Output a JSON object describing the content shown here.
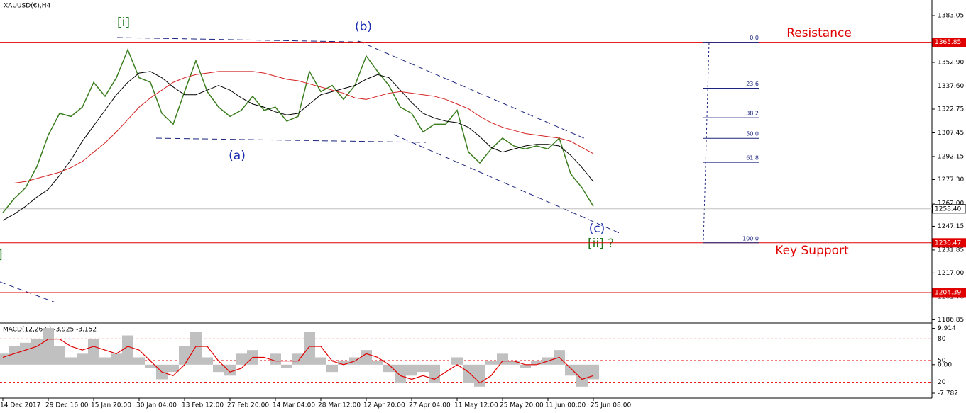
{
  "chart_data": [
    {
      "type": "line",
      "title": "XAUUSD(€),H4",
      "categories": [
        "14 Dec 2017",
        null,
        null,
        null,
        "29 Dec 16:00",
        null,
        null,
        null,
        "15 Jan 20:00",
        null,
        null,
        null,
        "30 Jan 04:00",
        null,
        null,
        null,
        "13 Feb 12:00",
        null,
        null,
        null,
        "27 Feb 20:00",
        null,
        null,
        null,
        "14 Mar 04:00",
        null,
        null,
        null,
        "28 Mar 12:00",
        null,
        null,
        null,
        "12 Apr 20:00",
        null,
        null,
        null,
        "27 Apr 04:00",
        null,
        null,
        null,
        "11 May 12:00",
        null,
        null,
        null,
        "25 May 20:00",
        null,
        null,
        null,
        "11 Jun 00:00",
        null,
        null,
        null,
        "25 Jun 08:00"
      ],
      "series": [
        {
          "color": "#3a7d1e",
          "values": [
            1255.9,
            1265,
            1272,
            1285.6,
            1306,
            1320,
            1318,
            1324,
            1340,
            1331,
            1343,
            1361,
            1343,
            1340,
            1320,
            1313,
            1334,
            1354,
            1334,
            1324,
            1318,
            1322,
            1331,
            1322,
            1324,
            1315,
            1318,
            1347,
            1334,
            1338,
            1329,
            1338,
            1357,
            1347,
            1338,
            1324,
            1320,
            1308,
            1313,
            1313,
            1322,
            1295,
            1288,
            1297,
            1304,
            1299,
            1297,
            1299,
            1297,
            1304,
            1281,
            1272,
            1260
          ]
        },
        {
          "color": "#000000",
          "values": [
            1251,
            1255,
            1260,
            1266,
            1271,
            1280,
            1290,
            1302,
            1312,
            1322,
            1332,
            1340,
            1346,
            1347,
            1343,
            1337,
            1332,
            1332,
            1335,
            1338,
            1335,
            1330,
            1326,
            1324,
            1321,
            1319,
            1320,
            1326,
            1332,
            1334,
            1336,
            1338,
            1342,
            1345,
            1343,
            1335,
            1327,
            1320,
            1317,
            1315,
            1314,
            1311,
            1305,
            1298,
            1295,
            1297,
            1299,
            1300,
            1300,
            1299,
            1293,
            1285,
            1276
          ]
        },
        {
          "color": "#d32020",
          "values": [
            1275,
            1275,
            1276,
            1278,
            1280,
            1282,
            1285,
            1289,
            1295,
            1301,
            1308,
            1316,
            1324,
            1330,
            1335,
            1340,
            1343,
            1345,
            1346,
            1347,
            1347,
            1347,
            1347,
            1346,
            1344,
            1342,
            1341,
            1339,
            1337,
            1335,
            1333,
            1330,
            1329,
            1331,
            1333,
            1334,
            1333,
            1332,
            1331,
            1329,
            1326,
            1323,
            1318,
            1314,
            1311,
            1309,
            1307,
            1306,
            1305,
            1304,
            1302,
            1298,
            1294
          ]
        }
      ],
      "ylim": [
        1185.2,
        1392.2
      ],
      "yticks": [
        1383.05,
        {
          "value": 1352.9,
          "label": "1352.90"
        },
        {
          "value": 1337.6,
          "label": "1337.60"
        },
        1322.75,
        1307.45,
        1292.15,
        {
          "value": 1277.3,
          "label": "1277.30"
        },
        {
          "value": 1262,
          "label": "1262.00"
        },
        1247.15,
        1231.85,
        {
          "value": 1217,
          "label": "1217.00"
        },
        {
          "value": 1201.7,
          "label": "1201.70"
        },
        1186.85
      ],
      "hlines": [
        {
          "value": 1365.85,
          "color": "#e00000"
        },
        {
          "value": 1258.4,
          "label": "1258.40",
          "color": "#c0c0c0"
        },
        {
          "value": 1236.47,
          "color": "#e00000"
        },
        {
          "value": 1204.39,
          "color": "#e00000"
        }
      ],
      "fib_levels": [
        {
          "label": "0.0",
          "price": 1365.85
        },
        {
          "label": "23.6",
          "price": 1336.2
        },
        {
          "label": "38.2",
          "price": 1317.2
        },
        {
          "label": "50.0",
          "price": 1303.9
        },
        {
          "label": "61.8",
          "price": 1288.4
        },
        {
          "label": "100.0",
          "price": 1236.47
        }
      ],
      "annotations": [
        "[i]",
        "(b)",
        "(a)",
        "(c)",
        "[ii] ?",
        "]",
        "Resistance",
        "Key Support"
      ]
    },
    {
      "type": "macd",
      "title": "MACD(12,26,9) -3.925 -3.152",
      "series": [
        {
          "color": "#c0c0c0",
          "values": [
            3,
            5,
            6,
            7,
            10,
            5,
            2,
            3,
            7,
            2,
            3,
            8,
            2,
            -1,
            -4,
            -2,
            5,
            9,
            2,
            -2,
            -3,
            3,
            4,
            0,
            3,
            -1,
            3,
            9,
            2,
            -2,
            1,
            2,
            4,
            1,
            -2,
            -5,
            -3,
            -2,
            -5,
            0,
            2,
            -5,
            -6,
            1,
            3,
            1,
            -1,
            1,
            2,
            4,
            -3,
            -6,
            -4
          ]
        },
        {
          "color": "#e00000",
          "values": [
            2,
            3,
            4,
            5,
            7,
            7,
            5,
            4,
            5,
            4,
            3,
            5,
            4,
            1,
            -2,
            -3,
            0,
            5,
            5,
            1,
            -2,
            -1,
            2,
            2,
            1,
            1,
            1,
            5,
            5,
            1,
            0,
            1,
            3,
            2,
            0,
            -3,
            -4,
            -3,
            -4,
            -2,
            0,
            -2,
            -5,
            -3,
            1,
            1,
            0,
            0,
            1,
            2,
            -1,
            -4,
            -3
          ]
        }
      ],
      "ylim": [
        -8.75,
        11.0
      ],
      "yticks": [
        9.914,
        {
          "value": 0,
          "label": "0.00"
        },
        -7.782
      ],
      "y2lim": [
        0,
        100
      ],
      "y2ticks": [
        80,
        50,
        20
      ]
    }
  ]
}
